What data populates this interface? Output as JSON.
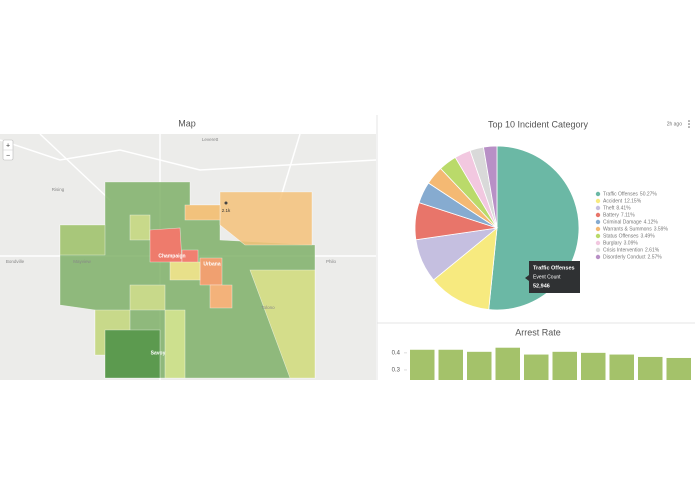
{
  "map_panel": {
    "title": "Map",
    "zoom_in": "+",
    "zoom_out": "−",
    "marker_label": "2.1k",
    "places": [
      "Leverett",
      "Rising",
      "Bondville",
      "Mayview",
      "Philo",
      "Champaign",
      "Urbana",
      "Savoy",
      "Tolono"
    ]
  },
  "updated": "2h ago",
  "chart_data": [
    {
      "type": "pie",
      "title": "Top 10 Incident Category",
      "categories": [
        "Traffic Offenses",
        "Accident",
        "Theft",
        "Battery",
        "Criminal Damage",
        "Warrants & Summons",
        "Status Offenses",
        "Burglary",
        "Crisis Intervention",
        "Disorderly Conduct"
      ],
      "values": [
        50.27,
        12.15,
        8.41,
        7.11,
        4.12,
        3.59,
        3.49,
        3.09,
        2.61,
        2.57
      ],
      "value_labels": [
        "50.27%",
        "12.15%",
        "8.41%",
        "7.11%",
        "4.12%",
        "3.59%",
        "3.49%",
        "3.09%",
        "2.61%",
        "2.57%"
      ],
      "colors": [
        "#6bb8a5",
        "#f7ea7f",
        "#c5bfe0",
        "#e8756a",
        "#86abd0",
        "#f4b973",
        "#bada6a",
        "#f2c8e0",
        "#d9d9d9",
        "#b890c6"
      ],
      "tooltip": {
        "title": "Traffic Offenses",
        "label": "Event Count",
        "value": "52,946"
      }
    },
    {
      "type": "bar",
      "title": "Arrest Rate",
      "values": [
        0.418,
        0.418,
        0.406,
        0.43,
        0.39,
        0.406,
        0.4,
        0.39,
        0.376,
        0.37
      ],
      "color": "#a4c26a",
      "ylim": [
        0.24,
        0.44
      ],
      "yticks": [
        0.3,
        0.4
      ]
    }
  ]
}
